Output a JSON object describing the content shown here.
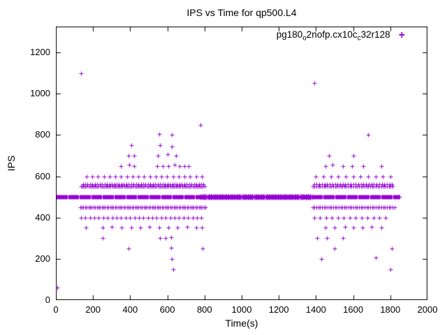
{
  "chart_data": {
    "type": "scatter",
    "title": "IPS vs Time for qp500.L4",
    "xlabel": "Time(s)",
    "ylabel": "IPS",
    "xlim": [
      0,
      2000
    ],
    "ylim": [
      0,
      1325
    ],
    "xticks": [
      0,
      200,
      400,
      600,
      800,
      1000,
      1200,
      1400,
      1600,
      1800,
      2000
    ],
    "yticks": [
      0,
      200,
      400,
      600,
      800,
      1000,
      1200
    ],
    "grid": false,
    "legend_position": "top-right-inside",
    "marker": "plus",
    "marker_color": "#9400D3",
    "border_color": "#000000",
    "legend": {
      "label_plain": "pg180_o2nofp.cx10c_c32r128",
      "segments": [
        {
          "text": "pg180",
          "sub": false
        },
        {
          "text": "o",
          "sub": true
        },
        {
          "text": "2nofp.cx10c",
          "sub": false
        },
        {
          "text": "c",
          "sub": true
        },
        {
          "text": "32r128",
          "sub": false
        }
      ]
    },
    "series": [
      {
        "name": "pg180_o2nofp.cx10c_c32r128",
        "bands_note": "each band is [y, x_start, x_end, x_step] of overlapping points forming dense horizontal rows",
        "bands": [
          [
            500,
            2,
            1852,
            4
          ],
          [
            497,
            780,
            1380,
            6
          ],
          [
            503,
            780,
            1380,
            6
          ],
          [
            450,
            130,
            805,
            9
          ],
          [
            450,
            1382,
            1825,
            10
          ],
          [
            550,
            135,
            800,
            8
          ],
          [
            550,
            1382,
            1820,
            10
          ],
          [
            562,
            145,
            795,
            13
          ],
          [
            562,
            1390,
            1812,
            14
          ],
          [
            400,
            135,
            795,
            24
          ],
          [
            400,
            1390,
            1800,
            32
          ],
          [
            600,
            165,
            790,
            31
          ],
          [
            600,
            1400,
            1800,
            40
          ]
        ],
        "points": [
          [
            8,
            60
          ],
          [
            135,
            1100
          ],
          [
            780,
            850
          ],
          [
            555,
            805
          ],
          [
            625,
            800
          ],
          [
            405,
            750
          ],
          [
            560,
            750
          ],
          [
            625,
            745
          ],
          [
            390,
            700
          ],
          [
            420,
            700
          ],
          [
            550,
            700
          ],
          [
            600,
            705
          ],
          [
            645,
            700
          ],
          [
            350,
            650
          ],
          [
            395,
            655
          ],
          [
            420,
            650
          ],
          [
            545,
            650
          ],
          [
            575,
            650
          ],
          [
            605,
            650
          ],
          [
            640,
            655
          ],
          [
            665,
            650
          ],
          [
            690,
            650
          ],
          [
            715,
            650
          ],
          [
            160,
            350
          ],
          [
            250,
            350
          ],
          [
            300,
            355
          ],
          [
            355,
            350
          ],
          [
            405,
            350
          ],
          [
            455,
            350
          ],
          [
            505,
            355
          ],
          [
            555,
            350
          ],
          [
            605,
            350
          ],
          [
            655,
            350
          ],
          [
            705,
            355
          ],
          [
            755,
            350
          ],
          [
            785,
            350
          ],
          [
            250,
            300
          ],
          [
            560,
            300
          ],
          [
            590,
            300
          ],
          [
            620,
            305
          ],
          [
            390,
            250
          ],
          [
            620,
            255
          ],
          [
            790,
            250
          ],
          [
            625,
            200
          ],
          [
            630,
            150
          ],
          [
            1390,
            1050
          ],
          [
            1680,
            800
          ],
          [
            1470,
            700
          ],
          [
            1600,
            700
          ],
          [
            1450,
            650
          ],
          [
            1490,
            655
          ],
          [
            1545,
            650
          ],
          [
            1595,
            650
          ],
          [
            1655,
            650
          ],
          [
            1750,
            650
          ],
          [
            1450,
            350
          ],
          [
            1500,
            350
          ],
          [
            1555,
            355
          ],
          [
            1600,
            350
          ],
          [
            1650,
            350
          ],
          [
            1700,
            355
          ],
          [
            1750,
            350
          ],
          [
            1405,
            300
          ],
          [
            1460,
            300
          ],
          [
            1545,
            300
          ],
          [
            1500,
            250
          ],
          [
            1810,
            250
          ],
          [
            1430,
            200
          ],
          [
            1720,
            205
          ],
          [
            1800,
            150
          ]
        ]
      }
    ]
  }
}
